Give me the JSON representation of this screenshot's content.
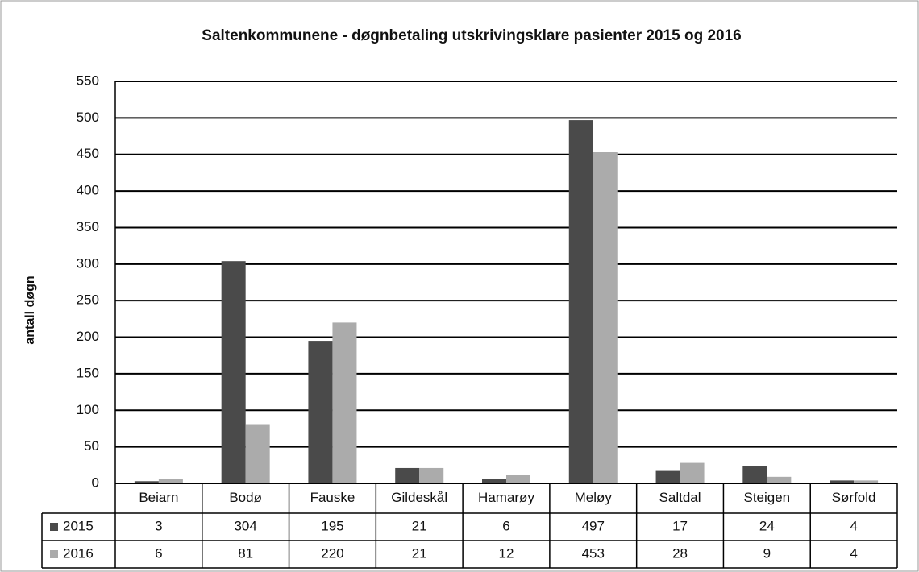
{
  "chart_data": {
    "type": "bar",
    "title": "Saltenkommunene - døgnbetaling utskrivingsklare pasienter 2015 og 2016",
    "y_label": "antall døgn",
    "categories": [
      "Beiarn",
      "Bodø",
      "Fauske",
      "Gildeskål",
      "Hamarøy",
      "Meløy",
      "Saltdal",
      "Steigen",
      "Sørfold"
    ],
    "series": [
      {
        "name": "2015",
        "color": "#4a4a4a",
        "values": [
          3,
          304,
          195,
          21,
          6,
          497,
          17,
          24,
          4
        ]
      },
      {
        "name": "2016",
        "color": "#ababab",
        "values": [
          6,
          81,
          220,
          21,
          12,
          453,
          28,
          9,
          4
        ]
      }
    ],
    "ylim": [
      0,
      550
    ],
    "yticks": [
      0,
      50,
      100,
      150,
      200,
      250,
      300,
      350,
      400,
      450,
      500,
      550
    ],
    "grid": true
  }
}
